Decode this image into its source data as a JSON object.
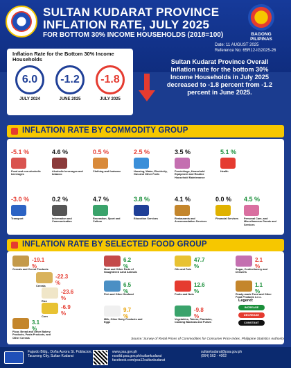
{
  "header": {
    "title_line1": "SULTAN KUDARAT PROVINCE",
    "title_line2": "INFLATION RATE, JULY 2025",
    "title_line3": "FOR BOTTOM 30% INCOME HOUSEHOLDS (2018=100)",
    "brand": "BAGONG PILIPINAS",
    "date": "Date: 11 AUGUST 2025",
    "reference": "Reference No: 65R12-IG2025-26"
  },
  "rates": {
    "caption": "Inflation Rate for the Bottom 30% Income Households",
    "items": [
      {
        "value": "6.0",
        "label": "JULY 2024",
        "color": "#1f3f97"
      },
      {
        "value": "-1.2",
        "label": "JUNE 2025",
        "color": "#1f3f97"
      },
      {
        "value": "-1.8",
        "label": "JULY 2025",
        "color": "#e53b30"
      }
    ]
  },
  "summary": "Sultan Kudarat Province Overall Inflation rate for the bottom 30% Income Households in July 2025 decreased to -1.8 percent from -1.2 percent in June 2025.",
  "commodity": {
    "heading": "INFLATION RATE BY COMMODITY GROUP",
    "items": [
      {
        "value": "-5.1 %",
        "label": "Food and non-alcoholic beverages",
        "color": "#e53b30",
        "icon": "food-icon"
      },
      {
        "value": "4.6 %",
        "label": "Alcoholic beverages and tobacco",
        "color": "#111111",
        "icon": "wine-icon"
      },
      {
        "value": "0.5 %",
        "label": "Clothing and footwear",
        "color": "#e53b30",
        "icon": "shirt-icon"
      },
      {
        "value": "2.5 %",
        "label": "Housing, Water, Electricity, Gas and Other Fuels",
        "color": "#e53b30",
        "icon": "house-icon"
      },
      {
        "value": "3.5 %",
        "label": "Furnishings, Household Equipment and Routine Household Maintenance",
        "color": "#111111",
        "icon": "sofa-icon"
      },
      {
        "value": "5.1 %",
        "label": "Health",
        "color": "#1a8f3a",
        "icon": "health-icon"
      },
      {
        "value": "-3.0 %",
        "label": "Transport",
        "color": "#e53b30",
        "icon": "bus-icon"
      },
      {
        "value": "0.2 %",
        "label": "Information and Communication",
        "color": "#111111",
        "icon": "laptop-icon"
      },
      {
        "value": "4.7 %",
        "label": "Recreation, Sport and Culture",
        "color": "#111111",
        "icon": "tent-icon"
      },
      {
        "value": "3.8 %",
        "label": "Education Services",
        "color": "#1a8f3a",
        "icon": "graduation-icon"
      },
      {
        "value": "4.1 %",
        "label": "Restaurants and Accommodation Services",
        "color": "#111111",
        "icon": "restaurant-icon"
      },
      {
        "value": "0.0 %",
        "label": "Financial Services",
        "color": "#111111",
        "icon": "money-icon"
      },
      {
        "value": "4.5 %",
        "label": "Personal Care, and Miscellaneous Goods and Services",
        "color": "#1a8f3a",
        "icon": "care-icon"
      }
    ]
  },
  "food": {
    "heading": "INFLATION RATE BY SELECTED FOOD GROUP",
    "items": [
      {
        "value": "-19.1 %",
        "label": "Cereals and Cereal Products",
        "color": "#e53b30",
        "icon": "cereal-icon"
      },
      {
        "value": "-22.3 %",
        "label": "Cereals",
        "color": "#e53b30",
        "icon": "grain-icon"
      },
      {
        "value": "-23.6 %",
        "label": "Rice",
        "color": "#e53b30",
        "icon": "rice-icon"
      },
      {
        "value": "-6.9 %",
        "label": "Corn",
        "color": "#e53b30",
        "icon": "corn-icon"
      },
      {
        "value": "3.1 %",
        "label": "Flour, Bread and Other Bakery Products, Pasta Products, and Other Cereals",
        "color": "#1a8f3a",
        "icon": "bread-icon"
      },
      {
        "value": "6.2 %",
        "label": "Meat and Other Parts of Slaughtered Land Animals",
        "color": "#1a8f3a",
        "icon": "meat-icon"
      },
      {
        "value": "6.5 %",
        "label": "Fish and Other Seafood",
        "color": "#1a8f3a",
        "icon": "fish-icon"
      },
      {
        "value": "9.7 %",
        "label": "Milk, Other Dairy Products and Eggs",
        "color": "#e8a000",
        "icon": "milk-icon"
      },
      {
        "value": "47.7 %",
        "label": "Oils and Fats",
        "color": "#1a8f3a",
        "icon": "oil-icon"
      },
      {
        "value": "12.6 %",
        "label": "Fruits and Nuts",
        "color": "#1a8f3a",
        "icon": "fruit-icon"
      },
      {
        "value": "-9.8 %",
        "label": "Vegetables, Tubers, Plantains, Cooking Bananas and Pulses",
        "color": "#e53b30",
        "icon": "vegetable-icon"
      },
      {
        "value": "2.1 %",
        "label": "Sugar, Confectionery and Desserts",
        "color": "#e53b30",
        "icon": "sugar-icon"
      },
      {
        "value": "1.1 %",
        "label": "Ready-made Food and Other Food Products n.e.c.",
        "color": "#1a8f3a",
        "icon": "readymade-icon"
      }
    ]
  },
  "legend": {
    "title": "Legend:",
    "increase": "INCREASE",
    "decrease": "DECREASE",
    "constant": "CONSTANT",
    "colors": {
      "increase": "#1a8f3a",
      "decrease": "#e53b30",
      "constant": "#111111"
    }
  },
  "source": "Source: Survey of Retail Prices of Commodities for Consumer Price Index, Philippine Statistics Authority",
  "footer": {
    "address": "Fajardo Bldg., Doña Aurora St. Poblacion, Tacurong City, Sultan Kudarat",
    "web": "www.psa.gov.ph",
    "email": "rssolid.psa.gov.ph/sultankudarat",
    "facebook": "facebook.com/psa12sultankudarat",
    "contact_email": "sultankudarat@psa.gov.ph",
    "phone": "(064) 562 - 4062"
  }
}
